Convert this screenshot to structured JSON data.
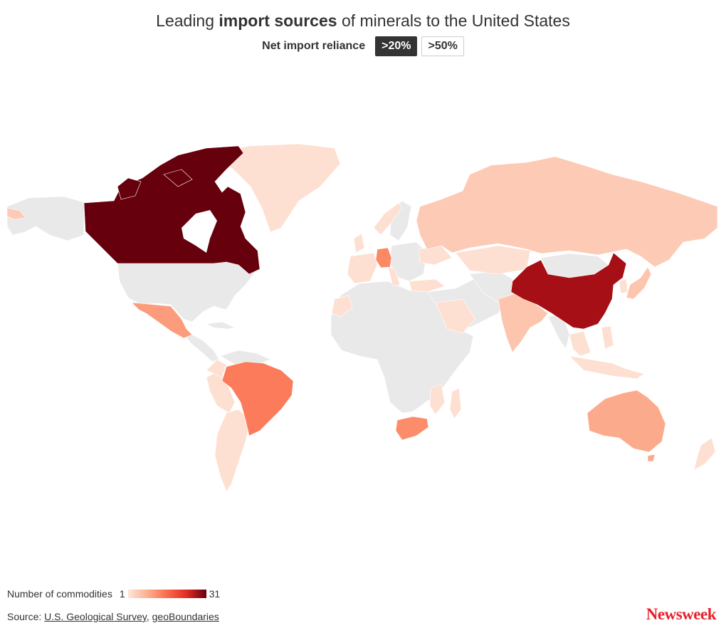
{
  "header": {
    "title_pre": "Leading ",
    "title_bold": "import sources",
    "title_post": " of minerals to the United States",
    "toggle_label": "Net import reliance",
    "options": [
      ">20%",
      ">50%"
    ],
    "selected": ">20%"
  },
  "legend": {
    "label": "Number of commodities",
    "min": "1",
    "max": "31",
    "color_min": "#fee5d9",
    "color_max": "#67000d"
  },
  "source": {
    "prefix": "Source: ",
    "links": [
      "U.S. Geological Survey",
      "geoBoundaries"
    ],
    "separator": ", "
  },
  "brand": "Newsweek",
  "colors": {
    "no_data": "#e9e9e9",
    "canada": "#67000d",
    "china": "#a50f15",
    "brazil": "#fb7b5b",
    "germany": "#fb8a64",
    "mexico": "#fc9c7c",
    "south_africa": "#fc8d6a",
    "australia": "#fcaa8c",
    "russia": "#fdcab5",
    "india": "#fdc5ae",
    "light": "#fee0d2"
  },
  "chart_data": {
    "type": "choropleth",
    "metric": "Number of commodities",
    "scale": [
      1,
      31
    ],
    "values_estimated": {
      "Canada": 31,
      "China": 26,
      "Germany": 14,
      "Brazil": 14,
      "South Africa": 13,
      "Mexico": 11,
      "Australia": 10,
      "India": 6,
      "Russia": 5,
      "Japan": 4,
      "Kazakhstan": 3,
      "Peru": 3,
      "Chile": 3,
      "Norway": 2,
      "Indonesia": 2,
      "Argentina": 2,
      "Israel": 2,
      "Spain": 2,
      "Madagascar": 2,
      "South Korea": 2,
      "Turkey": 2,
      "Ukraine": 2,
      "Belgium": 2,
      "France": 2,
      "Italy": 2,
      "United Kingdom": 2,
      "Colombia": 1,
      "Bolivia": 1,
      "Morocco": 1,
      "Saudi Arabia": 1,
      "Mozambique": 1,
      "Philippines": 1,
      "Thailand": 1,
      "Vietnam": 1,
      "Malaysia": 1,
      "Greenland": 1,
      "New Zealand": 1
    }
  }
}
